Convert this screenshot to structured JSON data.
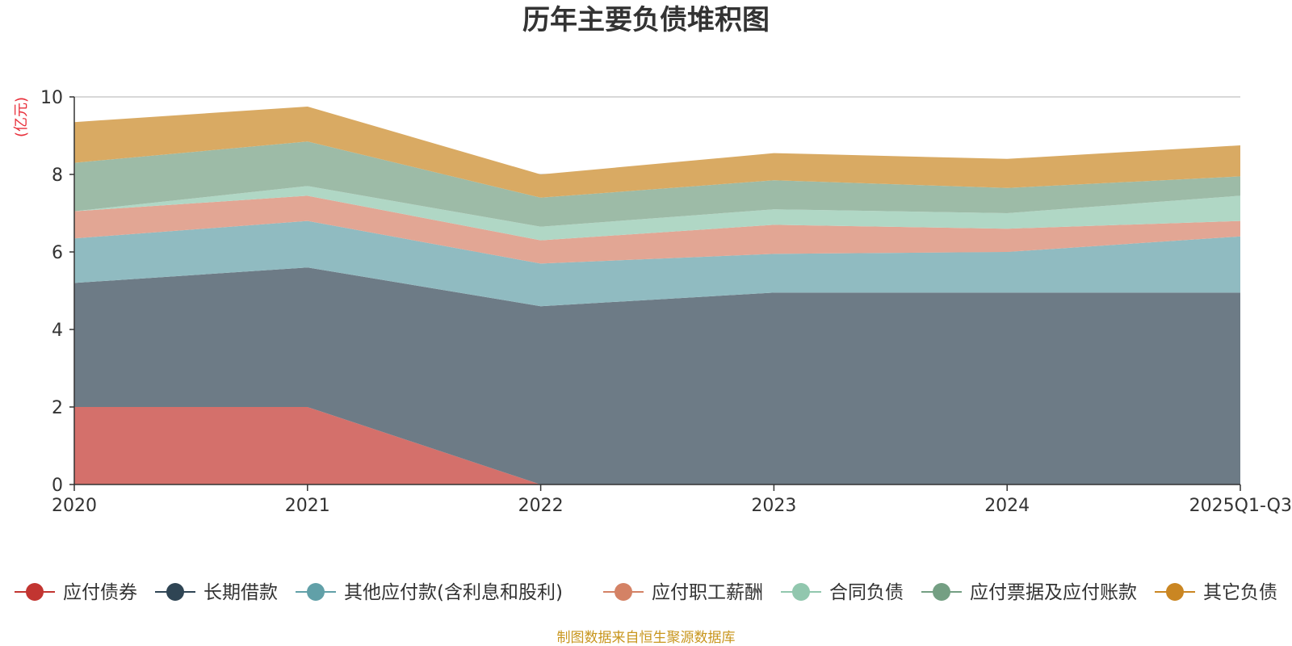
{
  "chart_data": {
    "type": "area",
    "stacked": true,
    "title": "历年主要负债堆积图",
    "unit_label": "(亿元)",
    "categories": [
      "2020",
      "2021",
      "2022",
      "2023",
      "2024",
      "2025Q1-Q3"
    ],
    "ylim": [
      0,
      10
    ],
    "yticks": [
      0,
      2,
      4,
      6,
      8,
      10
    ],
    "grid": true,
    "legend_position": "bottom",
    "series": [
      {
        "name": "应付债券",
        "values": [
          2.0,
          2.0,
          0.0,
          0.0,
          0.0,
          0.0
        ],
        "color": "#c23531",
        "fill": "#d4706b"
      },
      {
        "name": "长期借款",
        "values": [
          3.2,
          3.6,
          4.6,
          4.95,
          4.95,
          4.95
        ],
        "color": "#2f4554",
        "fill": "#6d7b86"
      },
      {
        "name": "其他应付款(含利息和股利)",
        "values": [
          1.15,
          1.2,
          1.1,
          1.0,
          1.05,
          1.45
        ],
        "color": "#61a0a8",
        "fill": "#90bbc1"
      },
      {
        "name": "应付职工薪酬",
        "values": [
          0.7,
          0.65,
          0.6,
          0.75,
          0.6,
          0.4
        ],
        "color": "#d48265",
        "fill": "#e2a694"
      },
      {
        "name": "合同负债",
        "values": [
          0.0,
          0.25,
          0.35,
          0.4,
          0.4,
          0.65
        ],
        "color": "#91c7ae",
        "fill": "#b0d7c5"
      },
      {
        "name": "应付票据及应付账款",
        "values": [
          1.25,
          1.15,
          0.75,
          0.75,
          0.65,
          0.5
        ],
        "color": "#749f83",
        "fill": "#9dbba7"
      },
      {
        "name": "其它负债",
        "values": [
          1.05,
          0.9,
          0.6,
          0.7,
          0.75,
          0.8
        ],
        "color": "#ca8622",
        "fill": "#d9aa63"
      }
    ]
  },
  "source_text": "制图数据来自恒生聚源数据库",
  "colors": {
    "unit_label": "#e8303b",
    "source": "#c8961e",
    "grid": "#cccccc",
    "axis": "#333333"
  }
}
